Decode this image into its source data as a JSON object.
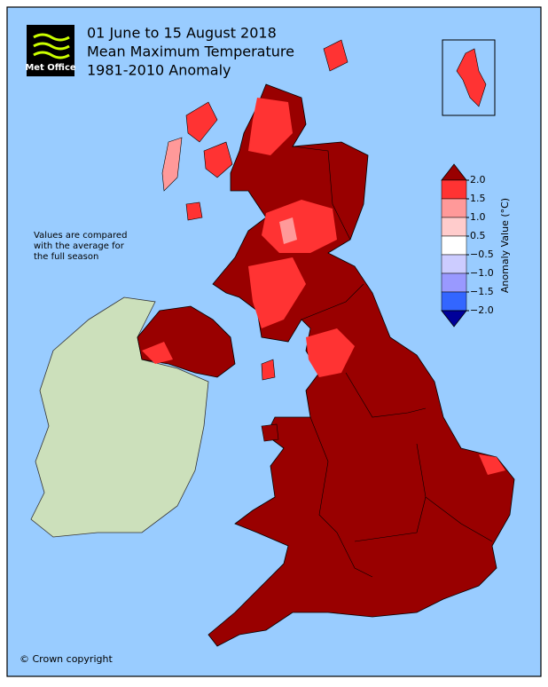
{
  "header": {
    "logo_text": "Met Office",
    "title_lines": [
      "01 June to 15 August 2018",
      "Mean Maximum Temperature",
      "1981-2010 Anomaly"
    ]
  },
  "note_lines": [
    "Values are compared",
    "with the average for",
    "the full season"
  ],
  "legend": {
    "label": "Anomaly Value (°C)",
    "ticks": [
      {
        "value": 2,
        "label": "2.0"
      },
      {
        "value": 1.5,
        "label": "1.5"
      },
      {
        "value": 1,
        "label": "1.0"
      },
      {
        "value": 0.5,
        "label": "0.5"
      },
      {
        "value": -0.5,
        "label": "−0.5"
      },
      {
        "value": -1,
        "label": "−1.0"
      },
      {
        "value": -1.5,
        "label": "−1.5"
      },
      {
        "value": -2,
        "label": "−2.0"
      }
    ],
    "colors": [
      "#ff3333",
      "#ff9999",
      "#ffcccc",
      "#ffffff",
      "#ccccff",
      "#9999ff",
      "#3366ff"
    ],
    "over_color": "#990000",
    "under_color": "#000099"
  },
  "footer": {
    "copyright": "© Crown copyright"
  }
}
